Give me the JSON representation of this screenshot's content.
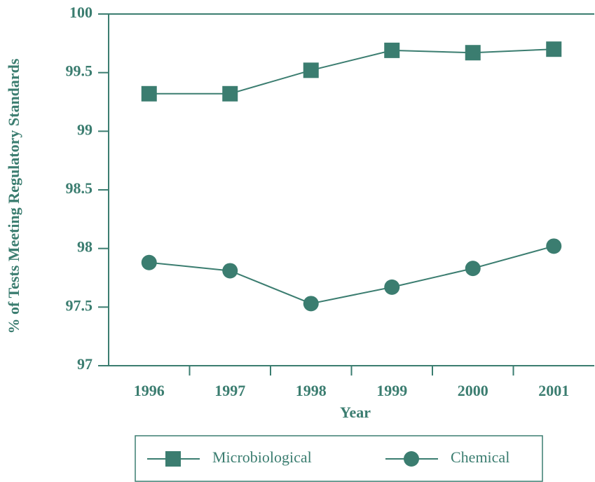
{
  "chart_data": {
    "type": "line",
    "categories": [
      "1996",
      "1997",
      "1998",
      "1999",
      "2000",
      "2001"
    ],
    "series": [
      {
        "name": "Microbiological",
        "color": "#3b7d70",
        "marker": "square",
        "values": [
          99.32,
          99.32,
          99.52,
          99.69,
          99.67,
          99.7
        ]
      },
      {
        "name": "Chemical",
        "color": "#3b7d70",
        "marker": "circle",
        "values": [
          97.88,
          97.81,
          97.53,
          97.67,
          97.83,
          98.02
        ]
      }
    ],
    "xlabel": "Year",
    "ylabel": "% of Tests Meeting Regulatory Standards",
    "ylim": [
      97,
      100
    ],
    "yticks": [
      97,
      97.5,
      98,
      98.5,
      99,
      99.5,
      100
    ],
    "legend": "bottom",
    "grid": false
  }
}
